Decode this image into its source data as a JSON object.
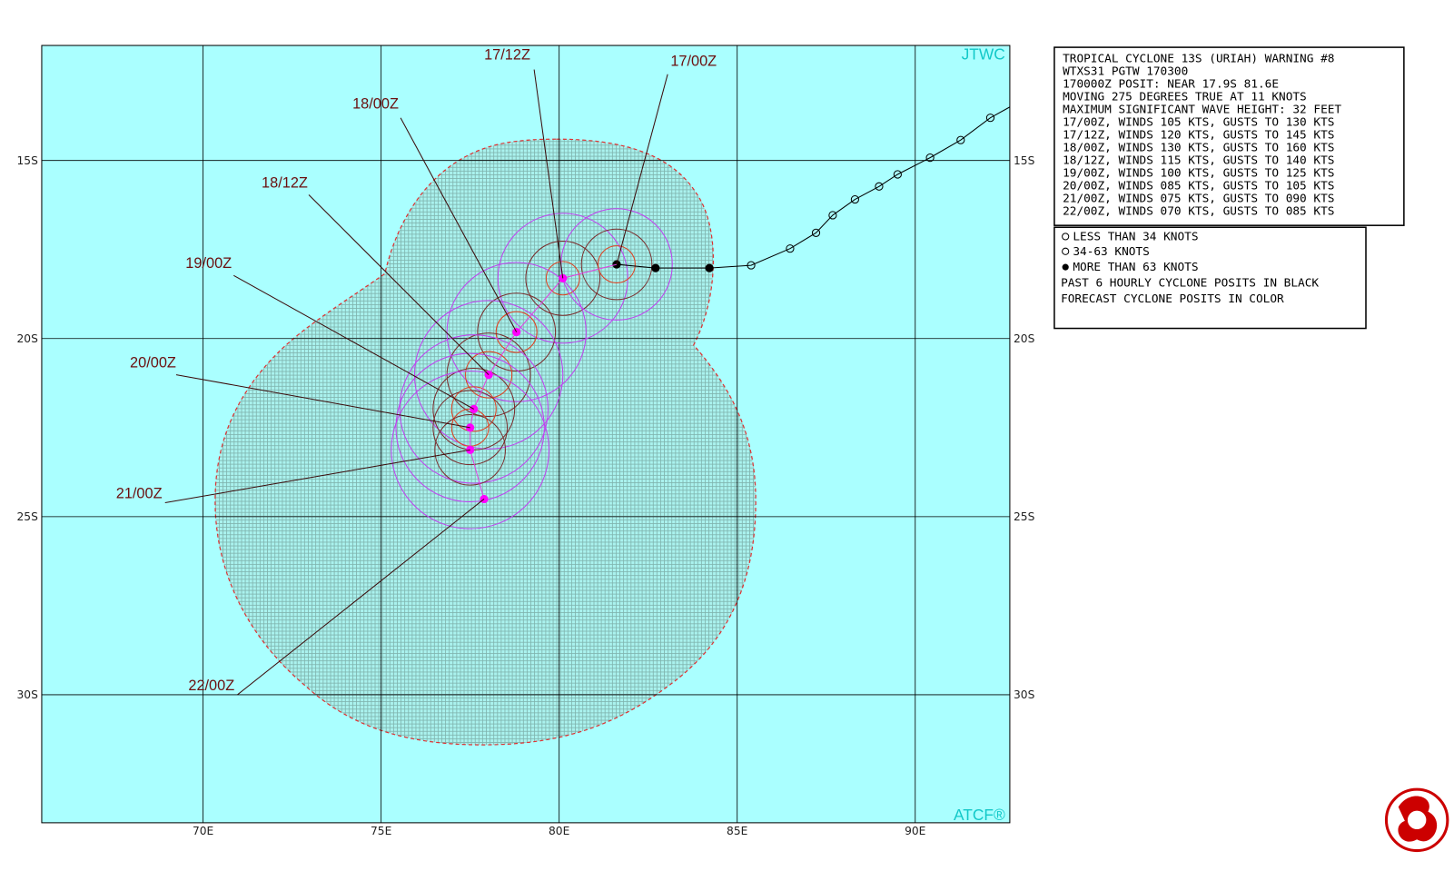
{
  "map": {
    "corner_labels": {
      "top": "JTWC",
      "bottom": "ATCF®"
    },
    "latitude_labels": [
      "15S",
      "20S",
      "25S",
      "30S"
    ],
    "longitude_labels": [
      "70E",
      "75E",
      "80E",
      "85E",
      "90E"
    ],
    "forecast_labels": [
      "17/00Z",
      "17/12Z",
      "18/00Z",
      "18/12Z",
      "19/00Z",
      "20/00Z",
      "21/00Z",
      "22/00Z"
    ]
  },
  "warning": {
    "lines": [
      "TROPICAL CYCLONE 13S (URIAH) WARNING #8",
      "WTXS31 PGTW 170300",
      "170000Z POSIT: NEAR 17.9S 81.6E",
      "MOVING 275 DEGREES TRUE AT 11 KNOTS",
      "MAXIMUM SIGNIFICANT WAVE HEIGHT: 32 FEET",
      "17/00Z, WINDS 105 KTS, GUSTS TO 130 KTS",
      "17/12Z, WINDS 120 KTS, GUSTS TO 145 KTS",
      "18/00Z, WINDS 130 KTS, GUSTS TO 160 KTS",
      "18/12Z, WINDS 115 KTS, GUSTS TO 140 KTS",
      "19/00Z, WINDS 100 KTS, GUSTS TO 125 KTS",
      "20/00Z, WINDS 085 KTS, GUSTS TO 105 KTS",
      "21/00Z, WINDS 075 KTS, GUSTS TO 090 KTS",
      "22/00Z, WINDS 070 KTS, GUSTS TO 085 KTS"
    ]
  },
  "legend": {
    "lines": [
      "LESS THAN 34 KNOTS",
      "34-63 KNOTS",
      "MORE THAN 63 KNOTS",
      "PAST 6 HOURLY CYCLONE POSITS IN BLACK",
      "FORECAST CYCLONE POSITS IN COLOR"
    ]
  }
}
